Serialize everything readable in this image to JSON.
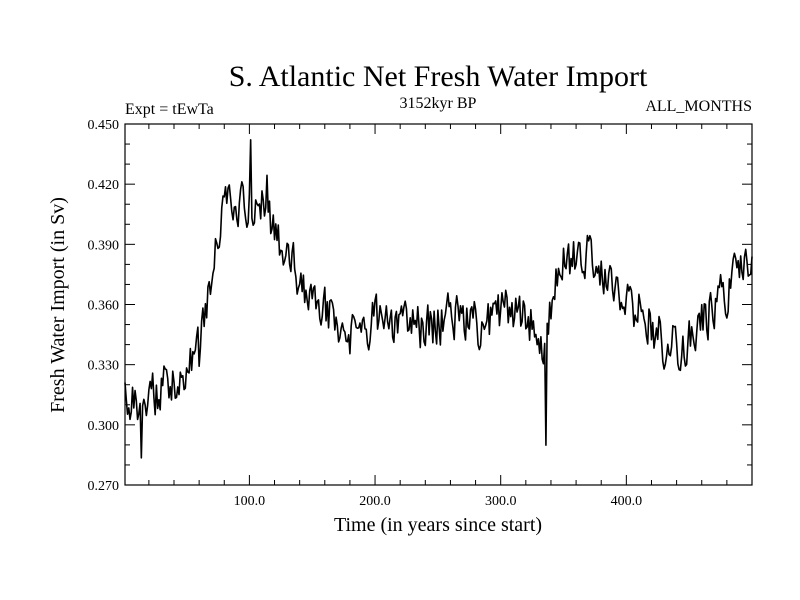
{
  "chart_data": {
    "type": "line",
    "title": "S. Atlantic Net Fresh Water Import",
    "subtitle_left": "Expt = tEwTa",
    "subtitle_center": "3152kyr BP",
    "subtitle_right": "ALL_MONTHS",
    "xlabel": "Time (in years since start)",
    "ylabel": "Fresh Water Import (in Sv)",
    "xlim": [
      1,
      500
    ],
    "ylim": [
      0.27,
      0.45
    ],
    "x_ticks": [
      100,
      200,
      300,
      400
    ],
    "x_tick_labels": [
      "100.0",
      "200.0",
      "300.0",
      "400.0"
    ],
    "y_ticks": [
      0.27,
      0.3,
      0.33,
      0.36,
      0.39,
      0.42,
      0.45
    ],
    "y_tick_labels": [
      "0.270",
      "0.300",
      "0.330",
      "0.360",
      "0.390",
      "0.420",
      "0.450"
    ],
    "line_color": "#000000",
    "series_envelope": {
      "name": "Net fresh water import",
      "n_points": 500,
      "x": [
        1,
        10,
        20,
        30,
        40,
        50,
        60,
        65,
        70,
        75,
        80,
        90,
        100,
        110,
        115,
        120,
        130,
        140,
        150,
        160,
        170,
        180,
        190,
        200,
        210,
        220,
        230,
        240,
        250,
        260,
        270,
        280,
        290,
        300,
        310,
        320,
        330,
        336,
        340,
        345,
        350,
        360,
        370,
        380,
        390,
        400,
        410,
        420,
        430,
        440,
        450,
        460,
        470,
        480,
        490,
        500
      ],
      "y": [
        0.322,
        0.305,
        0.312,
        0.318,
        0.322,
        0.33,
        0.335,
        0.36,
        0.372,
        0.395,
        0.405,
        0.41,
        0.408,
        0.41,
        0.405,
        0.395,
        0.385,
        0.37,
        0.362,
        0.358,
        0.348,
        0.343,
        0.35,
        0.352,
        0.353,
        0.352,
        0.35,
        0.348,
        0.35,
        0.355,
        0.352,
        0.35,
        0.352,
        0.355,
        0.358,
        0.353,
        0.348,
        0.34,
        0.355,
        0.372,
        0.385,
        0.383,
        0.388,
        0.378,
        0.37,
        0.36,
        0.358,
        0.35,
        0.342,
        0.338,
        0.343,
        0.35,
        0.358,
        0.365,
        0.375,
        0.378
      ]
    },
    "noise_amplitude": 0.012,
    "noise_seed": 3152
  }
}
